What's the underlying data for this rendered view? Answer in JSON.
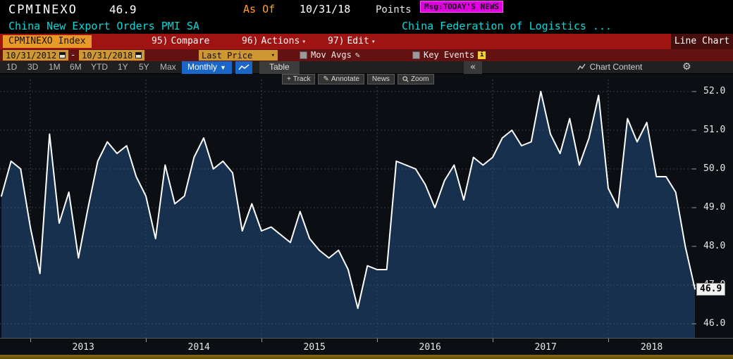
{
  "titlebar": {
    "ticker": "CPMINEXO",
    "value": "46.9",
    "as_of_label": "As Of",
    "as_of_date": "10/31/18",
    "units": "Points",
    "msg": "Msg:TODAY'S NEWS"
  },
  "subtitle": {
    "security_name": "China New Export Orders PMI SA",
    "source": "China Federation of Logistics ..."
  },
  "menubar": {
    "security_field": "CPMINEXO Index",
    "items": [
      {
        "key": "95)",
        "label": "Compare"
      },
      {
        "key": "96)",
        "label": "Actions"
      },
      {
        "key": "97)",
        "label": "Edit"
      }
    ],
    "view_label": "Line Chart"
  },
  "settingsbar": {
    "date_from": "10/31/2012",
    "date_separator": "-",
    "date_to": "10/31/2018",
    "field": "Last Price",
    "mov_avgs_label": "Mov Avgs",
    "key_events_label": "Key Events"
  },
  "toolbar": {
    "periods": [
      "1D",
      "3D",
      "1M",
      "6M",
      "YTD",
      "1Y",
      "5Y",
      "Max"
    ],
    "frequency": "Monthly",
    "table_label": "Table",
    "collapse_icon": "«",
    "chart_content_label": "Chart Content"
  },
  "chart_tools": [
    {
      "icon": "+",
      "label": "Track"
    },
    {
      "icon": "✎",
      "label": "Annotate"
    },
    {
      "icon": "",
      "label": "News"
    },
    {
      "icon": "zoom",
      "label": "Zoom"
    }
  ],
  "colors": {
    "amber": "#cd9732",
    "menu_red": "#a01313",
    "settings_red": "#641111",
    "cyan": "#00dcdc",
    "magenta": "#e000e0",
    "selected_blue": "#1b66c9"
  },
  "chart_data": {
    "type": "line",
    "title": "China New Export Orders PMI SA",
    "frequency": "monthly",
    "x": [
      "2012-10",
      "2012-11",
      "2012-12",
      "2013-01",
      "2013-02",
      "2013-03",
      "2013-04",
      "2013-05",
      "2013-06",
      "2013-07",
      "2013-08",
      "2013-09",
      "2013-10",
      "2013-11",
      "2013-12",
      "2014-01",
      "2014-02",
      "2014-03",
      "2014-04",
      "2014-05",
      "2014-06",
      "2014-07",
      "2014-08",
      "2014-09",
      "2014-10",
      "2014-11",
      "2014-12",
      "2015-01",
      "2015-02",
      "2015-03",
      "2015-04",
      "2015-05",
      "2015-06",
      "2015-07",
      "2015-08",
      "2015-09",
      "2015-10",
      "2015-11",
      "2015-12",
      "2016-01",
      "2016-02",
      "2016-03",
      "2016-04",
      "2016-05",
      "2016-06",
      "2016-07",
      "2016-08",
      "2016-09",
      "2016-10",
      "2016-11",
      "2016-12",
      "2017-01",
      "2017-02",
      "2017-03",
      "2017-04",
      "2017-05",
      "2017-06",
      "2017-07",
      "2017-08",
      "2017-09",
      "2017-10",
      "2017-11",
      "2017-12",
      "2018-01",
      "2018-02",
      "2018-03",
      "2018-04",
      "2018-05",
      "2018-06",
      "2018-07",
      "2018-08",
      "2018-09",
      "2018-10"
    ],
    "values": [
      49.3,
      50.2,
      50.0,
      48.5,
      47.3,
      50.9,
      48.6,
      49.4,
      47.7,
      49.0,
      50.2,
      50.7,
      50.4,
      50.6,
      49.8,
      49.3,
      48.2,
      50.1,
      49.1,
      49.3,
      50.3,
      50.8,
      50.0,
      50.2,
      49.9,
      48.4,
      49.1,
      48.4,
      48.5,
      48.3,
      48.1,
      48.9,
      48.2,
      47.9,
      47.7,
      47.9,
      47.4,
      46.4,
      47.5,
      47.4,
      47.4,
      50.2,
      50.1,
      50.0,
      49.6,
      49.0,
      49.7,
      50.1,
      49.2,
      50.3,
      50.1,
      50.3,
      50.8,
      51.0,
      50.6,
      50.7,
      52.0,
      50.9,
      50.4,
      51.3,
      50.1,
      50.8,
      51.9,
      49.5,
      49.0,
      51.3,
      50.7,
      51.2,
      49.8,
      49.8,
      49.4,
      48.0,
      46.9
    ],
    "yticks": [
      46.0,
      47.0,
      48.0,
      49.0,
      50.0,
      51.0,
      52.0
    ],
    "axis_top": 52.0,
    "axis_bottom": 46.0,
    "ylim": [
      45.6,
      52.4
    ],
    "xtick_years": [
      "2013",
      "2014",
      "2015",
      "2016",
      "2017",
      "2018"
    ],
    "last_value": 46.9,
    "last_value_label": "46.9",
    "line_color": "#ffffff",
    "fill_color": "#16304d",
    "grid": true,
    "legend_position": "none"
  }
}
